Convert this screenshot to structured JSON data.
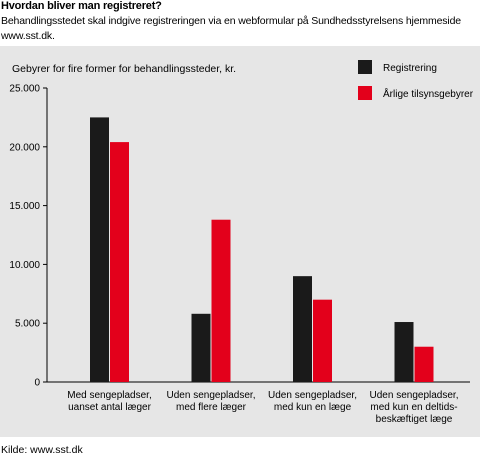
{
  "header": {
    "title": "Hvordan bliver man registreret?",
    "subtitle": "Behandlingsstedet skal indgive registreringen via en webformular på Sundhedsstyrelsens hjemmeside www.sst.dk."
  },
  "footer": {
    "source": "Kilde: www.sst.dk"
  },
  "chart_data": {
    "type": "bar",
    "title": "Gebyrer for fire former for behandlingssteder, kr.",
    "categories": [
      [
        "Med sengepladser,",
        "uanset antal læger"
      ],
      [
        "Uden sengepladser,",
        "med flere læger"
      ],
      [
        "Uden sengepladser,",
        "med kun en læge"
      ],
      [
        "Uden sengepladser,",
        "med kun en deltids-",
        "beskæftiget læge"
      ]
    ],
    "series": [
      {
        "name": "Registrering",
        "color": "#1a1a1a",
        "values": [
          22500,
          5800,
          9000,
          5100
        ]
      },
      {
        "name": "Årlige tilsynsgebyrer",
        "color": "#e3001b",
        "values": [
          20400,
          13800,
          7000,
          3000
        ]
      }
    ],
    "ylim": [
      0,
      25000
    ],
    "yticks": [
      "0",
      "5.000",
      "10.000",
      "15.000",
      "20.000",
      "25.000"
    ],
    "ytick_values": [
      0,
      5000,
      10000,
      15000,
      20000,
      25000
    ],
    "grid": false,
    "legend_position": "top-right"
  }
}
